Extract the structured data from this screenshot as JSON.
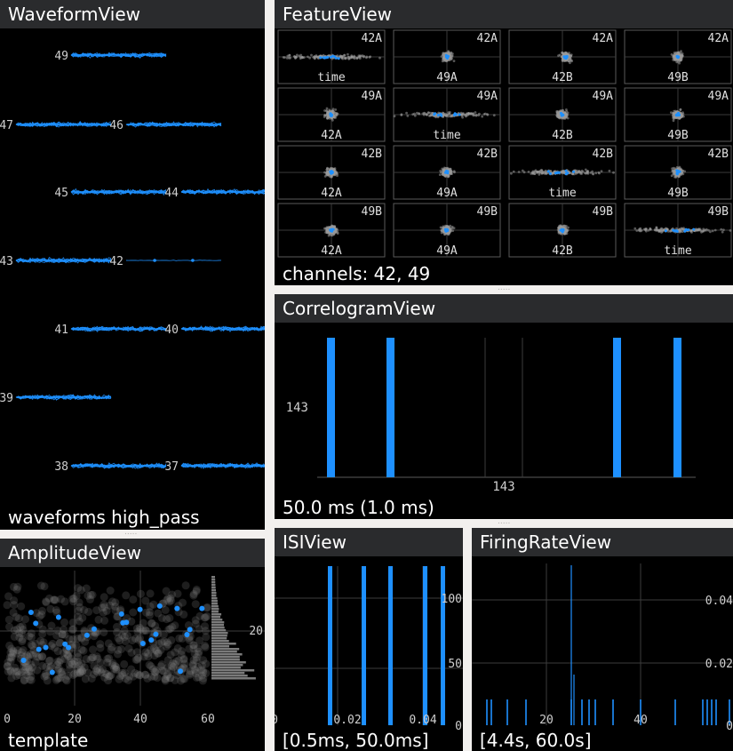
{
  "colors": {
    "background": "#f2f0ee",
    "panel": "#000000",
    "titlebar": "#2a2b2d",
    "accent": "#1e90ff",
    "grey_points": "#8a8a8a",
    "grid": "#3c3c3c"
  },
  "waveform": {
    "title": "WaveformView",
    "status": "waveforms high_pass",
    "channels": [
      "49",
      "47",
      "46",
      "45",
      "44",
      "43",
      "42",
      "41",
      "40",
      "39",
      "38",
      "37"
    ]
  },
  "feature": {
    "title": "FeatureView",
    "status": "channels: 42, 49",
    "cells": [
      {
        "top": "42A",
        "bottom": "time"
      },
      {
        "top": "42A",
        "bottom": "49A"
      },
      {
        "top": "42A",
        "bottom": "42B"
      },
      {
        "top": "42A",
        "bottom": "49B"
      },
      {
        "top": "49A",
        "bottom": "42A"
      },
      {
        "top": "49A",
        "bottom": "time"
      },
      {
        "top": "49A",
        "bottom": "42B"
      },
      {
        "top": "49A",
        "bottom": "49B"
      },
      {
        "top": "42B",
        "bottom": "42A"
      },
      {
        "top": "42B",
        "bottom": "49A"
      },
      {
        "top": "42B",
        "bottom": "time"
      },
      {
        "top": "42B",
        "bottom": "49B"
      },
      {
        "top": "49B",
        "bottom": "42A"
      },
      {
        "top": "49B",
        "bottom": "49A"
      },
      {
        "top": "49B",
        "bottom": "42B"
      },
      {
        "top": "49B",
        "bottom": "time"
      }
    ]
  },
  "correlogram": {
    "title": "CorrelogramView",
    "status": "50.0 ms (1.0 ms)",
    "y_label": "143",
    "x_label": "143"
  },
  "amplitude": {
    "title": "AmplitudeView",
    "status": "template",
    "x_ticks": [
      "0",
      "20",
      "40",
      "60"
    ],
    "y_tick": "20"
  },
  "isi": {
    "title": "ISIView",
    "status": "[0.5ms, 50.0ms]",
    "x_ticks": [
      "0",
      "0.02",
      "0.04"
    ],
    "y_ticks": [
      "100",
      "50",
      "0"
    ]
  },
  "firing_rate": {
    "title": "FiringRateView",
    "status": "[4.4s, 60.0s]",
    "x_ticks": [
      "20",
      "40"
    ],
    "y_ticks": [
      "0.04",
      "0.02",
      "0"
    ]
  }
}
